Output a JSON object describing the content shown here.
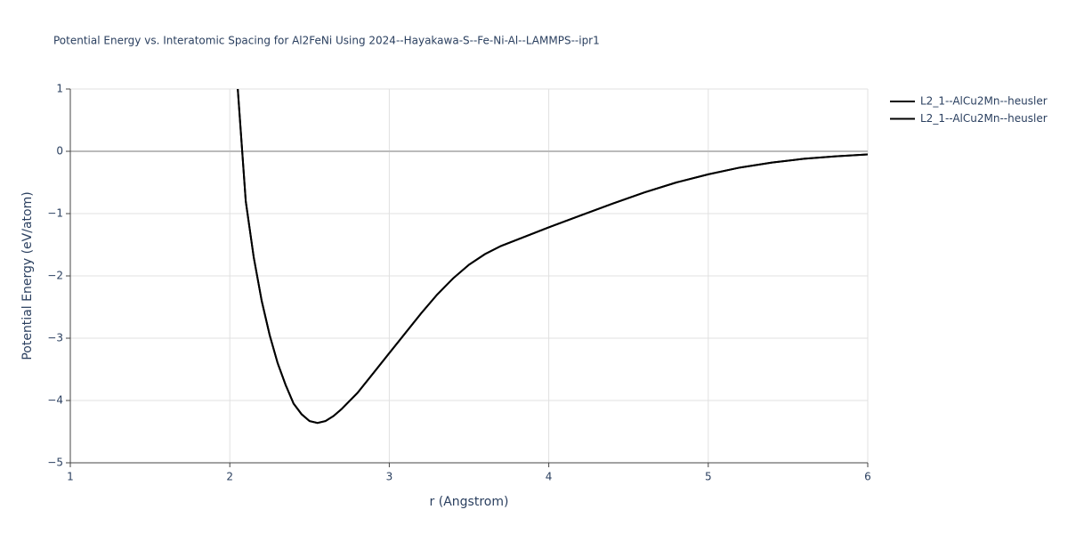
{
  "chart_data": {
    "type": "line",
    "title": "Potential Energy vs. Interatomic Spacing for Al2FeNi Using 2024--Hayakawa-S--Fe-Ni-Al--LAMMPS--ipr1",
    "xlabel": "r (Angstrom)",
    "ylabel": "Potential Energy (eV/atom)",
    "x": [
      2.05,
      2.1,
      2.15,
      2.2,
      2.25,
      2.3,
      2.35,
      2.4,
      2.45,
      2.5,
      2.55,
      2.6,
      2.65,
      2.7,
      2.8,
      2.9,
      3.0,
      3.1,
      3.2,
      3.3,
      3.4,
      3.5,
      3.6,
      3.7,
      3.8,
      4.0,
      4.2,
      4.4,
      4.6,
      4.8,
      5.0,
      5.2,
      5.4,
      5.6,
      5.8,
      6.0
    ],
    "series": [
      {
        "name": "L2_1--AlCu2Mn--heusler",
        "color": "#000000",
        "values": [
          1.0,
          -0.8,
          -1.7,
          -2.4,
          -2.95,
          -3.4,
          -3.75,
          -4.05,
          -4.22,
          -4.33,
          -4.36,
          -4.33,
          -4.25,
          -4.14,
          -3.88,
          -3.56,
          -3.24,
          -2.92,
          -2.6,
          -2.3,
          -2.04,
          -1.82,
          -1.65,
          -1.52,
          -1.42,
          -1.22,
          -1.03,
          -0.84,
          -0.66,
          -0.5,
          -0.37,
          -0.26,
          -0.18,
          -0.12,
          -0.08,
          -0.05
        ]
      },
      {
        "name": "L2_1--AlCu2Mn--heusler",
        "color": "#000000",
        "values": [
          1.0,
          -0.8,
          -1.7,
          -2.4,
          -2.95,
          -3.4,
          -3.75,
          -4.05,
          -4.22,
          -4.33,
          -4.36,
          -4.33,
          -4.25,
          -4.14,
          -3.88,
          -3.56,
          -3.24,
          -2.92,
          -2.6,
          -2.3,
          -2.04,
          -1.82,
          -1.65,
          -1.52,
          -1.42,
          -1.22,
          -1.03,
          -0.84,
          -0.66,
          -0.5,
          -0.37,
          -0.26,
          -0.18,
          -0.12,
          -0.08,
          -0.05
        ]
      }
    ],
    "xlim": [
      1,
      6
    ],
    "xticks": [
      1,
      2,
      3,
      4,
      5,
      6
    ],
    "ylim": [
      -5,
      1
    ],
    "yticks": [
      {
        "value": -5,
        "label": "−5"
      },
      {
        "value": -4,
        "label": "−4"
      },
      {
        "value": -3,
        "label": "−3"
      },
      {
        "value": -2,
        "label": "−2"
      },
      {
        "value": -1,
        "label": "−1"
      },
      0,
      1
    ],
    "grid": true,
    "legend": "right"
  }
}
